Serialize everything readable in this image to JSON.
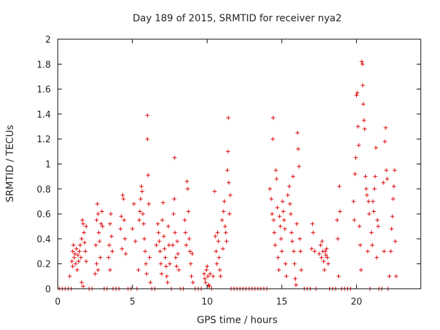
{
  "chart_data": {
    "type": "scatter",
    "title": "Day 189 of 2015, SRMTID for receiver nya2",
    "xlabel": "GPS time / hours",
    "ylabel": "SRMTID / TECUs",
    "xlim": [
      0,
      24.3
    ],
    "ylim": [
      0,
      2
    ],
    "xticks": [
      0,
      5,
      10,
      15,
      20
    ],
    "xtick_labels": [
      "0",
      "5",
      "10",
      "15",
      "20"
    ],
    "yticks": [
      0,
      0.2,
      0.4,
      0.6,
      0.8,
      1,
      1.2,
      1.4,
      1.6,
      1.8,
      2
    ],
    "ytick_labels": [
      "0",
      "0.2",
      "0.4",
      "0.6",
      "0.8",
      "1",
      "1.2",
      "1.4",
      "1.6",
      "1.8",
      "2"
    ],
    "grid": false,
    "marker": "+",
    "color": "#e00000",
    "series": [
      {
        "name": "nya2",
        "points": [
          [
            0.1,
            0
          ],
          [
            0.3,
            0
          ],
          [
            0.5,
            0
          ],
          [
            0.7,
            0
          ],
          [
            0.9,
            0
          ],
          [
            0.8,
            0.1
          ],
          [
            0.95,
            0.22
          ],
          [
            1.0,
            0.3
          ],
          [
            1.0,
            0.18
          ],
          [
            1.05,
            0.35
          ],
          [
            1.1,
            0.25
          ],
          [
            1.15,
            0.28
          ],
          [
            1.2,
            0.2
          ],
          [
            1.25,
            0.32
          ],
          [
            1.3,
            0.15
          ],
          [
            1.35,
            0.27
          ],
          [
            1.4,
            0.22
          ],
          [
            1.45,
            0.3
          ],
          [
            1.5,
            0.35
          ],
          [
            1.55,
            0.25
          ],
          [
            1.6,
            0.4
          ],
          [
            1.65,
            0.55
          ],
          [
            1.7,
            0.52
          ],
          [
            1.75,
            0.45
          ],
          [
            1.8,
            0.37
          ],
          [
            1.85,
            0.3
          ],
          [
            1.9,
            0.22
          ],
          [
            1.6,
            0.05
          ],
          [
            1.7,
            0.02
          ],
          [
            1.9,
            0.5
          ],
          [
            2.1,
            0
          ],
          [
            2.3,
            0
          ],
          [
            2.5,
            0.12
          ],
          [
            2.55,
            0.35
          ],
          [
            2.6,
            0.55
          ],
          [
            2.65,
            0.68
          ],
          [
            2.7,
            0.6
          ],
          [
            2.75,
            0.45
          ],
          [
            2.8,
            0.38
          ],
          [
            2.85,
            0.25
          ],
          [
            2.9,
            0.52
          ],
          [
            2.95,
            0.62
          ],
          [
            3.0,
            0.5
          ],
          [
            2.6,
            0.2
          ],
          [
            2.7,
            0.15
          ],
          [
            3.1,
            0
          ],
          [
            3.3,
            0
          ],
          [
            3.4,
            0.25
          ],
          [
            3.45,
            0.35
          ],
          [
            3.5,
            0.52
          ],
          [
            3.55,
            0.6
          ],
          [
            3.6,
            0.42
          ],
          [
            3.65,
            0.3
          ],
          [
            3.5,
            0.15
          ],
          [
            3.7,
            0
          ],
          [
            3.9,
            0
          ],
          [
            4.1,
            0
          ],
          [
            4.2,
            0.48
          ],
          [
            4.25,
            0.58
          ],
          [
            4.3,
            0.32
          ],
          [
            4.35,
            0.75
          ],
          [
            4.4,
            0.72
          ],
          [
            4.45,
            0.55
          ],
          [
            4.5,
            0.4
          ],
          [
            4.55,
            0.28
          ],
          [
            4.7,
            0
          ],
          [
            4.9,
            0
          ],
          [
            5.0,
            0.48
          ],
          [
            5.1,
            0.68
          ],
          [
            5.2,
            0.38
          ],
          [
            5.3,
            0
          ],
          [
            5.4,
            0.15
          ],
          [
            5.45,
            0.55
          ],
          [
            5.5,
            0.62
          ],
          [
            5.55,
            0.72
          ],
          [
            5.6,
            0.82
          ],
          [
            5.65,
            0.78
          ],
          [
            5.7,
            0.6
          ],
          [
            5.75,
            0.52
          ],
          [
            5.8,
            0.4
          ],
          [
            5.85,
            0.3
          ],
          [
            5.9,
            0.2
          ],
          [
            5.95,
            0.12
          ],
          [
            6.0,
            1.39
          ],
          [
            6.0,
            1.2
          ],
          [
            6.05,
            0.91
          ],
          [
            6.1,
            0.68
          ],
          [
            6.15,
            0.25
          ],
          [
            6.2,
            0.05
          ],
          [
            6.3,
            0
          ],
          [
            6.5,
            0
          ],
          [
            6.6,
            0.35
          ],
          [
            6.7,
            0.52
          ],
          [
            6.75,
            0.45
          ],
          [
            6.8,
            0.38
          ],
          [
            6.85,
            0.3
          ],
          [
            6.9,
            0.2
          ],
          [
            6.95,
            0.12
          ],
          [
            7.0,
            0.55
          ],
          [
            7.05,
            0.69
          ],
          [
            7.1,
            0.42
          ],
          [
            7.15,
            0.32
          ],
          [
            7.2,
            0.25
          ],
          [
            7.25,
            0.18
          ],
          [
            7.3,
            0.1
          ],
          [
            7.35,
            0.05
          ],
          [
            7.4,
            0.5
          ],
          [
            7.45,
            0.35
          ],
          [
            7.5,
            0.2
          ],
          [
            7.6,
            0
          ],
          [
            7.7,
            0.35
          ],
          [
            7.75,
            0.6
          ],
          [
            7.8,
            0.72
          ],
          [
            7.82,
            1.05
          ],
          [
            7.85,
            0.45
          ],
          [
            7.9,
            0.25
          ],
          [
            7.95,
            0.18
          ],
          [
            8.0,
            0.38
          ],
          [
            8.05,
            0.28
          ],
          [
            8.1,
            0.15
          ],
          [
            8.2,
            0
          ],
          [
            8.4,
            0
          ],
          [
            8.5,
            0.55
          ],
          [
            8.55,
            0.45
          ],
          [
            8.6,
            0.35
          ],
          [
            8.65,
            0.86
          ],
          [
            8.7,
            0.8
          ],
          [
            8.75,
            0.62
          ],
          [
            8.8,
            0.4
          ],
          [
            8.85,
            0.3
          ],
          [
            8.9,
            0.2
          ],
          [
            8.95,
            0.1
          ],
          [
            9.0,
            0.28
          ],
          [
            9.05,
            0.05
          ],
          [
            9.2,
            0
          ],
          [
            9.4,
            0
          ],
          [
            9.6,
            0
          ],
          [
            9.8,
            0.12
          ],
          [
            9.85,
            0.08
          ],
          [
            9.9,
            0.05
          ],
          [
            9.95,
            0.15
          ],
          [
            10.0,
            0.18
          ],
          [
            10.05,
            0.1
          ],
          [
            10.1,
            0.03
          ],
          [
            10.15,
            0.02
          ],
          [
            10.2,
            0.12
          ],
          [
            10.3,
            0
          ],
          [
            10.4,
            0.1
          ],
          [
            10.5,
            0.78
          ],
          [
            10.55,
            0.42
          ],
          [
            10.6,
            0.3
          ],
          [
            10.65,
            0.2
          ],
          [
            10.7,
            0.45
          ],
          [
            10.75,
            0.38
          ],
          [
            10.8,
            0.25
          ],
          [
            10.85,
            0.15
          ],
          [
            10.9,
            0.1
          ],
          [
            11.0,
            0.55
          ],
          [
            11.05,
            0.32
          ],
          [
            11.1,
            0.62
          ],
          [
            11.15,
            0.7
          ],
          [
            11.2,
            0.5
          ],
          [
            11.25,
            0.45
          ],
          [
            11.3,
            0.38
          ],
          [
            11.35,
            0.95
          ],
          [
            11.4,
            1.1
          ],
          [
            11.42,
            1.37
          ],
          [
            11.45,
            0.85
          ],
          [
            11.5,
            0.6
          ],
          [
            11.55,
            0.75
          ],
          [
            11.6,
            0
          ],
          [
            11.8,
            0
          ],
          [
            12.0,
            0
          ],
          [
            12.2,
            0
          ],
          [
            12.4,
            0
          ],
          [
            12.6,
            0
          ],
          [
            12.8,
            0
          ],
          [
            13.0,
            0
          ],
          [
            13.2,
            0
          ],
          [
            13.4,
            0
          ],
          [
            13.6,
            0
          ],
          [
            13.8,
            0
          ],
          [
            14.0,
            0
          ],
          [
            14.2,
            0.8
          ],
          [
            14.3,
            0.72
          ],
          [
            14.35,
            0.6
          ],
          [
            14.4,
            1.2
          ],
          [
            14.42,
            1.37
          ],
          [
            14.45,
            0.55
          ],
          [
            14.5,
            0.45
          ],
          [
            14.55,
            0.35
          ],
          [
            14.6,
            0.95
          ],
          [
            14.65,
            0.88
          ],
          [
            14.7,
            0.65
          ],
          [
            14.75,
            0.25
          ],
          [
            14.8,
            0.15
          ],
          [
            14.85,
            0.58
          ],
          [
            14.9,
            0.5
          ],
          [
            14.95,
            0.4
          ],
          [
            15.0,
            0.3
          ],
          [
            15.05,
            0.7
          ],
          [
            15.1,
            0.62
          ],
          [
            15.15,
            0.55
          ],
          [
            15.2,
            0.48
          ],
          [
            15.25,
            0.2
          ],
          [
            15.3,
            0.1
          ],
          [
            15.4,
            0.75
          ],
          [
            15.5,
            0.82
          ],
          [
            15.55,
            0.68
          ],
          [
            15.6,
            0.6
          ],
          [
            15.65,
            0.45
          ],
          [
            15.7,
            0.38
          ],
          [
            15.75,
            0.9
          ],
          [
            15.8,
            0.3
          ],
          [
            15.85,
            0.2
          ],
          [
            15.9,
            0.08
          ],
          [
            15.95,
            0.03
          ],
          [
            16.0,
            0.52
          ],
          [
            16.05,
            1.25
          ],
          [
            16.1,
            1.12
          ],
          [
            16.15,
            0.98
          ],
          [
            16.2,
            0.4
          ],
          [
            16.25,
            0.3
          ],
          [
            16.3,
            0.15
          ],
          [
            16.5,
            0
          ],
          [
            16.7,
            0
          ],
          [
            16.9,
            0
          ],
          [
            17.0,
            0.32
          ],
          [
            17.05,
            0.52
          ],
          [
            17.1,
            0.45
          ],
          [
            17.2,
            0.3
          ],
          [
            17.3,
            0
          ],
          [
            17.5,
            0.28
          ],
          [
            17.6,
            0.35
          ],
          [
            17.65,
            0.25
          ],
          [
            17.7,
            0.38
          ],
          [
            17.75,
            0.3
          ],
          [
            17.8,
            0.22
          ],
          [
            17.85,
            0.15
          ],
          [
            17.9,
            0.3
          ],
          [
            17.95,
            0.27
          ],
          [
            18.0,
            0.32
          ],
          [
            18.05,
            0.25
          ],
          [
            18.1,
            0.2
          ],
          [
            18.2,
            0
          ],
          [
            18.4,
            0
          ],
          [
            18.6,
            0
          ],
          [
            18.7,
            0.55
          ],
          [
            18.75,
            0.4
          ],
          [
            18.8,
            0.1
          ],
          [
            18.85,
            0.82
          ],
          [
            18.9,
            0.62
          ],
          [
            19.0,
            0
          ],
          [
            19.2,
            0
          ],
          [
            19.4,
            0
          ],
          [
            19.6,
            0
          ],
          [
            19.8,
            0.7
          ],
          [
            19.85,
            0.55
          ],
          [
            19.9,
            0.92
          ],
          [
            19.95,
            1.05
          ],
          [
            20.0,
            1.55
          ],
          [
            20.05,
            1.57
          ],
          [
            20.1,
            1.3
          ],
          [
            20.15,
            1.15
          ],
          [
            20.2,
            0.5
          ],
          [
            20.25,
            0.35
          ],
          [
            20.3,
            0.15
          ],
          [
            20.35,
            1.82
          ],
          [
            20.4,
            1.8
          ],
          [
            20.42,
            1.63
          ],
          [
            20.45,
            1.48
          ],
          [
            20.5,
            1.35
          ],
          [
            20.55,
            1.28
          ],
          [
            20.6,
            0.9
          ],
          [
            20.65,
            0.8
          ],
          [
            20.7,
            0.75
          ],
          [
            20.75,
            0.3
          ],
          [
            20.8,
            0.7
          ],
          [
            20.85,
            0.6
          ],
          [
            20.9,
            0
          ],
          [
            21.0,
            0.45
          ],
          [
            21.05,
            0.35
          ],
          [
            21.1,
            0.7
          ],
          [
            21.15,
            0.62
          ],
          [
            21.2,
            0.8
          ],
          [
            21.25,
            0.9
          ],
          [
            21.3,
            1.13
          ],
          [
            21.35,
            0.25
          ],
          [
            21.4,
            0.55
          ],
          [
            21.45,
            0.5
          ],
          [
            21.5,
            0
          ],
          [
            21.7,
            0
          ],
          [
            21.8,
            0.85
          ],
          [
            21.85,
            0.3
          ],
          [
            21.9,
            1.18
          ],
          [
            21.95,
            1.29
          ],
          [
            22.0,
            0.95
          ],
          [
            22.05,
            0.88
          ],
          [
            22.1,
            0
          ],
          [
            22.2,
            0.1
          ],
          [
            22.3,
            0.3
          ],
          [
            22.35,
            0.48
          ],
          [
            22.4,
            0.58
          ],
          [
            22.45,
            0.72
          ],
          [
            22.5,
            0.82
          ],
          [
            22.55,
            0.95
          ],
          [
            22.6,
            0.38
          ],
          [
            22.65,
            0.1
          ]
        ]
      }
    ]
  }
}
